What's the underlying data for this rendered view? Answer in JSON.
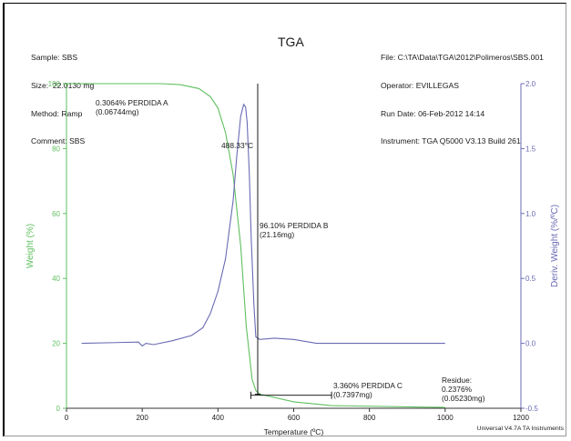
{
  "header": {
    "left": [
      "Sample: SBS",
      "Size:  22.0130 mg",
      "Method: Ramp",
      "Comment: SBS"
    ],
    "title": "TGA",
    "right": [
      "File: C:\\TA\\Data\\TGA\\2012\\Polimeros\\SBS.001",
      "Operator: EVILLEGAS",
      "Run Date: 06-Feb-2012 14:14",
      "Instrument: TGA Q5000 V3.13 Build 261"
    ]
  },
  "footer": "Universal V4.7A TA Instruments",
  "colors": {
    "weight": "#5fbf5f",
    "deriv": "#6a6ab4",
    "annot": "#000000"
  },
  "chart_data": {
    "type": "line",
    "xlabel": "Temperature (ºC)",
    "ylabel": "Weight (%)",
    "y2label": "Deriv. Weight (%/ºC)",
    "xlim": [
      0,
      1200
    ],
    "ylim": [
      0,
      100
    ],
    "y2lim": [
      -0.5,
      2.0
    ],
    "xticks": [
      "0",
      "200",
      "400",
      "600",
      "800",
      "1000",
      "1200"
    ],
    "yticks": [
      "0",
      "20",
      "40",
      "60",
      "80",
      "100"
    ],
    "y2ticks": [
      "-0.5",
      "0.0",
      "0.5",
      "1.0",
      "1.5",
      "2.0"
    ],
    "series": [
      {
        "axis": "left",
        "x": [
          0,
          200,
          250,
          300,
          350,
          380,
          400,
          420,
          440,
          460,
          475,
          490,
          500,
          510,
          520,
          600,
          700,
          1000
        ],
        "y": [
          100,
          100,
          100,
          99.7,
          98.5,
          96,
          92.5,
          85,
          72,
          50,
          25,
          9,
          5.5,
          4.3,
          4.1,
          2,
          0.8,
          0.24
        ]
      },
      {
        "axis": "right",
        "x": [
          40,
          190,
          200,
          210,
          230,
          280,
          330,
          360,
          380,
          400,
          420,
          440,
          450,
          460,
          468,
          473,
          477,
          483,
          488,
          495,
          500,
          510,
          550,
          600,
          660,
          800,
          1000
        ],
        "y": [
          0.0,
          0.01,
          -0.02,
          0.0,
          -0.01,
          0.02,
          0.06,
          0.12,
          0.23,
          0.4,
          0.65,
          1.1,
          1.45,
          1.75,
          1.84,
          1.82,
          1.7,
          1.3,
          0.8,
          0.3,
          0.05,
          0.03,
          0.04,
          0.03,
          0.0,
          0.0,
          0.0
        ]
      }
    ],
    "annotations": [
      {
        "lines": [
          "0.3064% PERDIDA A",
          "(0.06744mg)"
        ]
      },
      {
        "lines": [
          "488.33°C"
        ]
      },
      {
        "lines": [
          "96.10% PERDIDA B",
          "(21.16mg)"
        ]
      },
      {
        "lines": [
          "3.360% PERDIDA C",
          "(0.7397mg)"
        ]
      },
      {
        "lines": [
          "Residue:",
          "0.2376%",
          "(0.05230mg)"
        ]
      }
    ],
    "steps": [
      {
        "x": 505,
        "y_from": 100,
        "y_to": 4.3
      },
      {
        "x1": 487,
        "x2": 700,
        "y": 4.0
      }
    ],
    "grid": false
  }
}
